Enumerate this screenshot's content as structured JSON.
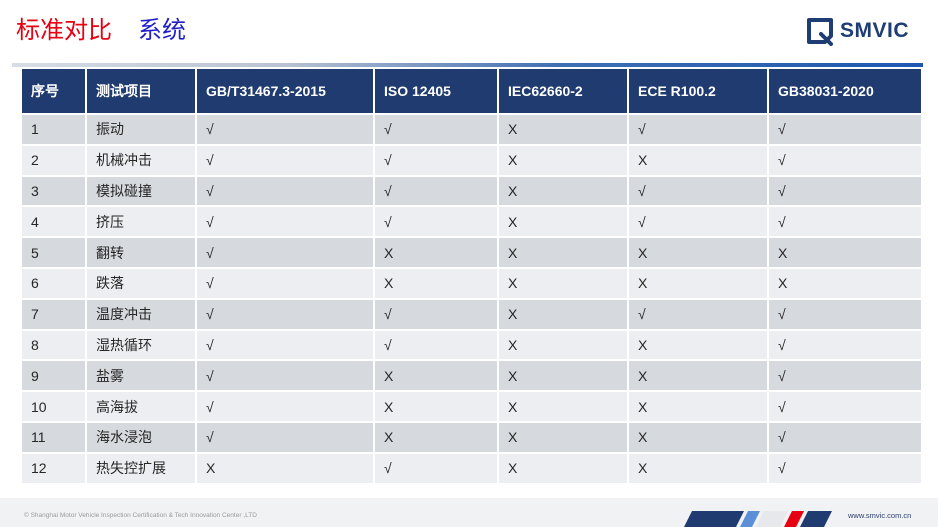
{
  "header": {
    "title_part1": "标准对比",
    "title_part2": "系统",
    "logo_text": "SMVIC"
  },
  "table": {
    "columns": [
      "序号",
      "测试项目",
      "GB/T31467.3-2015",
      "ISO 12405",
      "IEC62660-2",
      "ECE R100.2",
      "GB38031-2020"
    ],
    "rows": [
      {
        "no": "1",
        "item": "振动",
        "marks": [
          "√",
          "√",
          "X",
          "√",
          "√"
        ]
      },
      {
        "no": "2",
        "item": "机械冲击",
        "marks": [
          "√",
          "√",
          "X",
          "X",
          "√"
        ]
      },
      {
        "no": "3",
        "item": "模拟碰撞",
        "marks": [
          "√",
          "√",
          "X",
          "√",
          "√"
        ]
      },
      {
        "no": "4",
        "item": "挤压",
        "marks": [
          "√",
          "√",
          "X",
          "√",
          "√"
        ]
      },
      {
        "no": "5",
        "item": "翻转",
        "marks": [
          "√",
          "X",
          "X",
          "X",
          "X"
        ]
      },
      {
        "no": "6",
        "item": "跌落",
        "marks": [
          "√",
          "X",
          "X",
          "X",
          "X"
        ]
      },
      {
        "no": "7",
        "item": "温度冲击",
        "marks": [
          "√",
          "√",
          "X",
          "√",
          "√"
        ]
      },
      {
        "no": "8",
        "item": "湿热循环",
        "marks": [
          "√",
          "√",
          "X",
          "X",
          "√"
        ]
      },
      {
        "no": "9",
        "item": "盐雾",
        "marks": [
          "√",
          "X",
          "X",
          "X",
          "√"
        ]
      },
      {
        "no": "10",
        "item": "高海拔",
        "marks": [
          "√",
          "X",
          "X",
          "X",
          "√"
        ]
      },
      {
        "no": "11",
        "item": "海水浸泡",
        "marks": [
          "√",
          "X",
          "X",
          "X",
          "√"
        ]
      },
      {
        "no": "12",
        "item": "热失控扩展",
        "marks": [
          "X",
          "√",
          "X",
          "X",
          "√"
        ]
      }
    ]
  },
  "footer": {
    "copyright": "© Shanghai Motor Vehicle Inspection Certification & Tech Innovation Center ,LTD",
    "website": "www.smvic.com.cn"
  },
  "colors": {
    "title_red": "#e60012",
    "title_blue": "#1f1fc8",
    "header_bg": "#1f3b70",
    "row_dark": "#d6d9de",
    "row_light": "#eceef1",
    "logo_blue": "#1e3d73"
  },
  "icons": {
    "logo": "smvic-logo-icon",
    "stripes": "decorative-stripes-icon"
  }
}
